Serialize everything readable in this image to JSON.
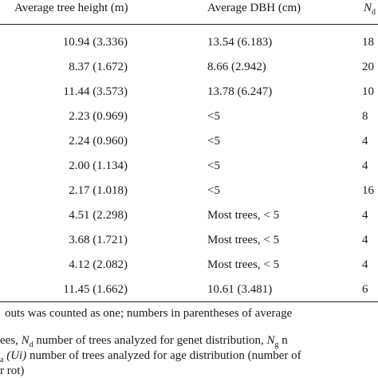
{
  "headers": {
    "height": "Average tree height (m)",
    "dbh": "Average DBH (cm)",
    "nd_symbol": "N",
    "nd_sub": "d"
  },
  "rows": [
    {
      "height": "10.94 (3.336)",
      "dbh": "13.54 (6.183)",
      "nd": "18"
    },
    {
      "height": "8.37 (1.672)",
      "dbh": "8.66 (2.942)",
      "nd": "20"
    },
    {
      "height": "11.44 (3.573)",
      "dbh": "13.78 (6.247)",
      "nd": "10"
    },
    {
      "height": "2.23 (0.969)",
      "dbh": "<5",
      "nd": "8"
    },
    {
      "height": "2.24 (0.960)",
      "dbh": "<5",
      "nd": "4"
    },
    {
      "height": "2.00 (1.134)",
      "dbh": "<5",
      "nd": "4"
    },
    {
      "height": "2.17 (1.018)",
      "dbh": "<5",
      "nd": "16"
    },
    {
      "height": "4.51 (2.298)",
      "dbh": "Most trees, < 5",
      "nd": "4"
    },
    {
      "height": "3.68 (1.721)",
      "dbh": "Most trees, < 5",
      "nd": "4"
    },
    {
      "height": "4.12 (2.082)",
      "dbh": "Most trees, < 5",
      "nd": "4"
    },
    {
      "height": "11.45 (1.662)",
      "dbh": "10.61 (3.481)",
      "nd": "6"
    }
  ],
  "footnotes": {
    "line1": "outs was counted as one; numbers in parentheses of average",
    "line2_a": "ees, ",
    "line2_sym1": "N",
    "line2_sub1": "d",
    "line2_b": " number of trees analyzed for genet distribution, ",
    "line2_sym2": "N",
    "line2_sub2": "g",
    "line2_c": " n",
    "line3_sub": "a",
    "line3_ui": " (Ui)",
    "line3_text": " number of trees analyzed for age distribution (number of",
    "line4": "r rot)"
  }
}
